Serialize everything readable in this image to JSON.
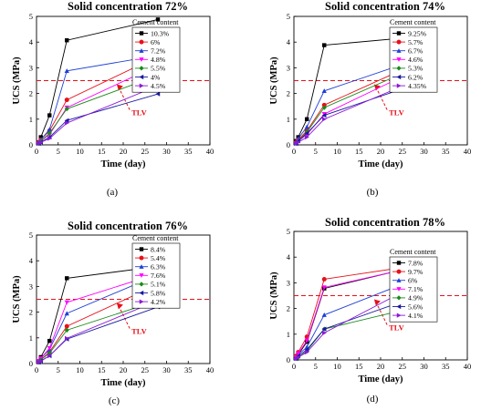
{
  "chart_data": [
    {
      "type": "line",
      "title": "Solid concentration 72%",
      "xlabel": "Time (day)",
      "ylabel": "UCS (MPa)",
      "panel_label": "(a)",
      "xlim": [
        0,
        40
      ],
      "ylim": [
        0,
        5
      ],
      "x_ticks": [
        "0",
        "5",
        "10",
        "15",
        "20",
        "25",
        "30",
        "35",
        "40"
      ],
      "y_ticks": [
        "0",
        "1",
        "2",
        "3",
        "4",
        "5"
      ],
      "legend_title": "Cement content",
      "legend_position": "top-right",
      "tlv_value": 2.5,
      "tlv_label": "TLV",
      "x": [
        0.5,
        1,
        3,
        7,
        28
      ],
      "series": [
        {
          "name": "10.3%",
          "values": [
            0.1,
            0.3,
            1.15,
            4.07,
            4.88
          ],
          "color": "#000000",
          "marker": "square"
        },
        {
          "name": "6%",
          "values": [
            0.1,
            0.2,
            0.55,
            1.75,
            3.45
          ],
          "color": "#e8101a",
          "marker": "circle"
        },
        {
          "name": "7.2%",
          "values": [
            0.1,
            0.2,
            0.6,
            2.88,
            3.48
          ],
          "color": "#1f3fd6",
          "marker": "triangle-up"
        },
        {
          "name": "4.8%",
          "values": [
            0.05,
            0.15,
            0.4,
            1.45,
            3.1
          ],
          "color": "#ff00ff",
          "marker": "triangle-down"
        },
        {
          "name": "5.5%",
          "values": [
            0.05,
            0.15,
            0.45,
            1.4,
            2.7
          ],
          "color": "#1a8a1a",
          "marker": "diamond"
        },
        {
          "name": "4%",
          "values": [
            0.05,
            0.1,
            0.3,
            0.95,
            1.98
          ],
          "color": "#1a1aa0",
          "marker": "triangle-left"
        },
        {
          "name": "4.5%",
          "values": [
            0.05,
            0.1,
            0.25,
            0.85,
            2.3
          ],
          "color": "#8a1ad6",
          "marker": "triangle-right"
        }
      ]
    },
    {
      "type": "line",
      "title": "Solid concentration 74%",
      "xlabel": "Time (day)",
      "ylabel": "UCS (MPa)",
      "panel_label": "(b)",
      "xlim": [
        0,
        40
      ],
      "ylim": [
        0,
        5
      ],
      "x_ticks": [
        "0",
        "5",
        "10",
        "15",
        "20",
        "25",
        "30",
        "35",
        "40"
      ],
      "y_ticks": [
        "0",
        "1",
        "2",
        "3",
        "4",
        "5"
      ],
      "legend_title": "Cement content",
      "legend_position": "top-right",
      "tlv_value": 2.5,
      "tlv_label": "TLV",
      "x": [
        0.5,
        1,
        3,
        7,
        28
      ],
      "series": [
        {
          "name": "9.25%",
          "values": [
            0.15,
            0.3,
            1.0,
            3.88,
            4.2
          ],
          "color": "#000000",
          "marker": "square"
        },
        {
          "name": "5.7%",
          "values": [
            0.1,
            0.2,
            0.55,
            1.55,
            3.15
          ],
          "color": "#e8101a",
          "marker": "circle"
        },
        {
          "name": "6.7%",
          "values": [
            0.1,
            0.25,
            0.7,
            2.1,
            3.3
          ],
          "color": "#1f3fd6",
          "marker": "triangle-up"
        },
        {
          "name": "4.6%",
          "values": [
            0.05,
            0.15,
            0.4,
            1.2,
            2.9
          ],
          "color": "#ff00ff",
          "marker": "triangle-down"
        },
        {
          "name": "5.3%",
          "values": [
            0.05,
            0.15,
            0.5,
            1.45,
            3.0
          ],
          "color": "#1a8a1a",
          "marker": "diamond"
        },
        {
          "name": "6.2%",
          "values": [
            0.05,
            0.15,
            0.45,
            1.15,
            2.35
          ],
          "color": "#1a1aa0",
          "marker": "triangle-left"
        },
        {
          "name": "4.35%",
          "values": [
            0.05,
            0.1,
            0.3,
            1.0,
            2.5
          ],
          "color": "#8a1ad6",
          "marker": "triangle-right"
        }
      ]
    },
    {
      "type": "line",
      "title": "Solid concentration 76%",
      "xlabel": "Time (day)",
      "ylabel": "UCS (MPa)",
      "panel_label": "(c)",
      "xlim": [
        0,
        40
      ],
      "ylim": [
        0,
        5
      ],
      "x_ticks": [
        "0",
        "5",
        "10",
        "15",
        "20",
        "25",
        "30",
        "35",
        "40"
      ],
      "y_ticks": [
        "0",
        "1",
        "2",
        "3",
        "4",
        "5"
      ],
      "legend_title": "Cement content",
      "legend_position": "top-right",
      "tlv_value": 2.5,
      "tlv_label": "TLV",
      "x": [
        0.5,
        1,
        3,
        7,
        28
      ],
      "series": [
        {
          "name": "8.4%",
          "values": [
            0.1,
            0.25,
            0.88,
            3.32,
            3.78
          ],
          "color": "#000000",
          "marker": "square"
        },
        {
          "name": "5.4%",
          "values": [
            0.05,
            0.15,
            0.45,
            1.45,
            3.08
          ],
          "color": "#e8101a",
          "marker": "circle"
        },
        {
          "name": "6.3%",
          "values": [
            0.1,
            0.2,
            0.55,
            1.95,
            3.45
          ],
          "color": "#1f3fd6",
          "marker": "triangle-up"
        },
        {
          "name": "7.6%",
          "values": [
            0.1,
            0.2,
            0.6,
            2.38,
            3.5
          ],
          "color": "#ff00ff",
          "marker": "triangle-down"
        },
        {
          "name": "5.1%",
          "values": [
            0.05,
            0.15,
            0.4,
            1.3,
            2.45
          ],
          "color": "#1a8a1a",
          "marker": "diamond"
        },
        {
          "name": "5.8%",
          "values": [
            0.05,
            0.1,
            0.3,
            0.95,
            2.2
          ],
          "color": "#1a1aa0",
          "marker": "triangle-left"
        },
        {
          "name": "4.2%",
          "values": [
            0.05,
            0.1,
            0.3,
            0.98,
            2.45
          ],
          "color": "#8a1ad6",
          "marker": "triangle-right"
        }
      ]
    },
    {
      "type": "line",
      "title": "Solid concentration 78%",
      "xlabel": "Time (day)",
      "ylabel": "UCS (MPa)",
      "panel_label": "(d)",
      "xlim": [
        0,
        40
      ],
      "ylim": [
        0,
        5
      ],
      "x_ticks": [
        "0",
        "5",
        "10",
        "15",
        "20",
        "25",
        "30",
        "35",
        "40"
      ],
      "y_ticks": [
        "0",
        "1",
        "2",
        "3",
        "4",
        "5"
      ],
      "legend_title": "Cement content",
      "legend_position": "top-right",
      "tlv_value": 2.5,
      "tlv_label": "TLV",
      "x": [
        0.5,
        1,
        3,
        7,
        28
      ],
      "series": [
        {
          "name": "7.8%",
          "values": [
            0.1,
            0.2,
            0.7,
            2.78,
            3.63
          ],
          "color": "#000000",
          "marker": "square"
        },
        {
          "name": "9.7%",
          "values": [
            0.15,
            0.3,
            0.9,
            3.14,
            3.67
          ],
          "color": "#e8101a",
          "marker": "circle"
        },
        {
          "name": "6%",
          "values": [
            0.05,
            0.2,
            0.5,
            1.75,
            3.14
          ],
          "color": "#1f3fd6",
          "marker": "triangle-up"
        },
        {
          "name": "7.1%",
          "values": [
            0.1,
            0.25,
            0.75,
            2.82,
            3.62
          ],
          "color": "#ff00ff",
          "marker": "triangle-down"
        },
        {
          "name": "4.9%",
          "values": [
            0.05,
            0.1,
            0.35,
            1.2,
            2.05
          ],
          "color": "#1a8a1a",
          "marker": "diamond"
        },
        {
          "name": "5.6%",
          "values": [
            0.05,
            0.15,
            0.4,
            1.2,
            2.45
          ],
          "color": "#1a1aa0",
          "marker": "triangle-left"
        },
        {
          "name": "4.1%",
          "values": [
            0.05,
            0.1,
            0.3,
            1.05,
            2.9
          ],
          "color": "#8a1ad6",
          "marker": "triangle-right"
        }
      ]
    }
  ]
}
